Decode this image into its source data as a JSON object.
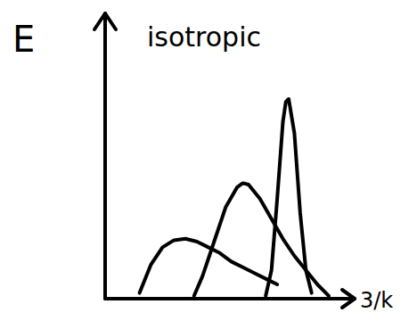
{
  "chart_data": {
    "type": "line",
    "title": "isotropic",
    "y_label": "E",
    "x_label": "3/k",
    "xlim": [
      0,
      87
    ],
    "ylim": [
      0,
      100
    ],
    "tick_labels": false,
    "grid": false,
    "color": "#000000",
    "series": [
      {
        "x": [
          12,
          16,
          20,
          24,
          28,
          32,
          36,
          40,
          44,
          48,
          52,
          56,
          60
        ],
        "values": [
          2,
          12,
          18,
          20.5,
          21,
          20,
          18,
          16,
          13,
          11,
          9,
          7,
          5
        ]
      },
      {
        "x": [
          31,
          34,
          38,
          42,
          46,
          48,
          50,
          54,
          58,
          62,
          66,
          70,
          74,
          78
        ],
        "values": [
          1,
          8,
          20,
          32,
          39,
          40.5,
          40,
          35,
          28,
          21,
          15,
          10,
          5,
          1
        ]
      },
      {
        "x": [
          56,
          58,
          60,
          62,
          63,
          64,
          66,
          68,
          70,
          72
        ],
        "values": [
          1,
          10,
          35,
          62,
          69,
          70,
          58,
          30,
          10,
          2
        ]
      }
    ]
  }
}
